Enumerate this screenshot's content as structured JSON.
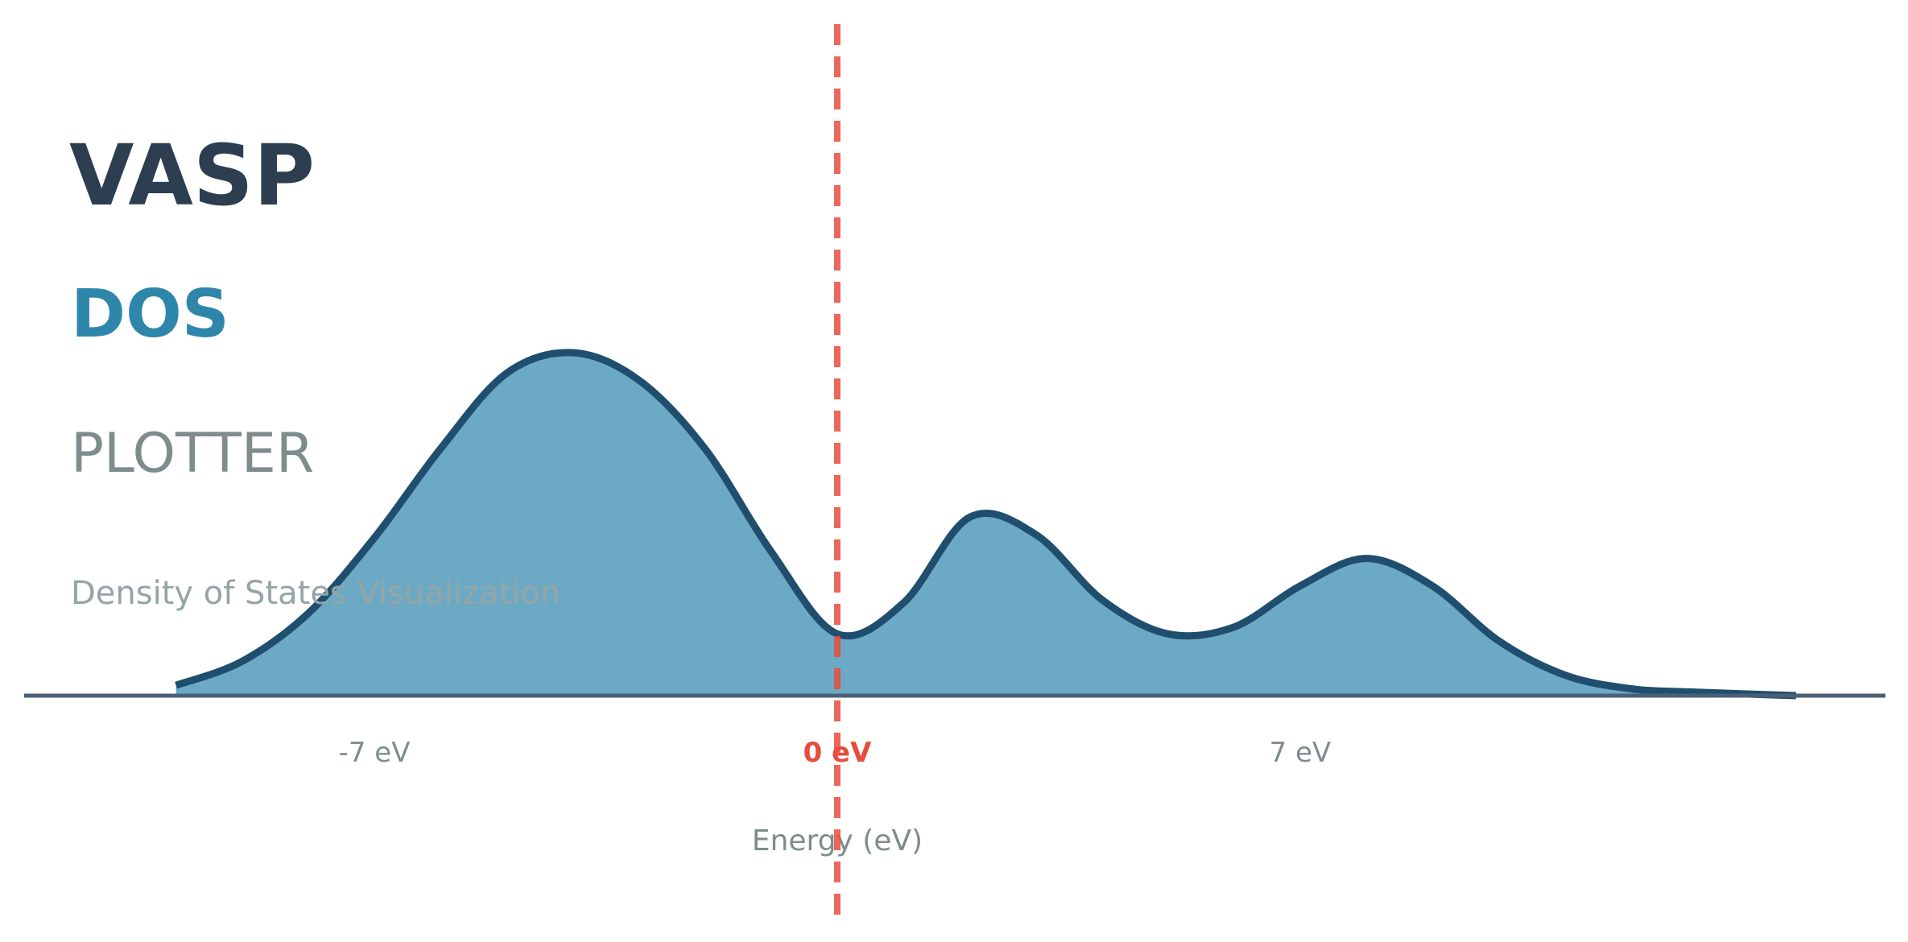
{
  "logo": {
    "line1": "VASP",
    "line2": "DOS",
    "line3": "PLOTTER",
    "tagline": "Density of States Visualization"
  },
  "colors": {
    "title_dark": "#2c3e50",
    "title_accent": "#2e86ab",
    "title_gray": "#7f8c8d",
    "tagline_gray": "#95a5a6",
    "fill": "#6ca9c5",
    "curve": "#1f4e6e",
    "baseline": "#4a6075",
    "fermi": "#e74c3c",
    "tick_gray": "#7f8c8d"
  },
  "chart_data": {
    "type": "area",
    "xlabel": "Energy (eV)",
    "ylabel": "",
    "xlim": [
      -12.0,
      23.0
    ],
    "ylim": [
      0,
      1.1
    ],
    "x": [
      -10.0,
      -9.0,
      -8.0,
      -7.0,
      -6.0,
      -5.0,
      -4.0,
      -3.0,
      -2.0,
      -1.0,
      0.0,
      1.0,
      2.0,
      3.0,
      4.0,
      5.0,
      6.0,
      7.0,
      8.0,
      9.0,
      10.0,
      11.0,
      12.0,
      13.0,
      14.5
    ],
    "y": [
      0.03,
      0.1,
      0.24,
      0.46,
      0.72,
      0.94,
      1.0,
      0.92,
      0.72,
      0.42,
      0.18,
      0.27,
      0.52,
      0.47,
      0.28,
      0.18,
      0.2,
      0.32,
      0.4,
      0.32,
      0.16,
      0.06,
      0.02,
      0.01,
      0.0
    ],
    "xticks": [
      -7,
      0,
      7
    ],
    "xtick_labels": [
      "-7 eV",
      "0 eV",
      "7 eV"
    ],
    "fermi_level": 0,
    "grid": false,
    "legend": "none"
  }
}
